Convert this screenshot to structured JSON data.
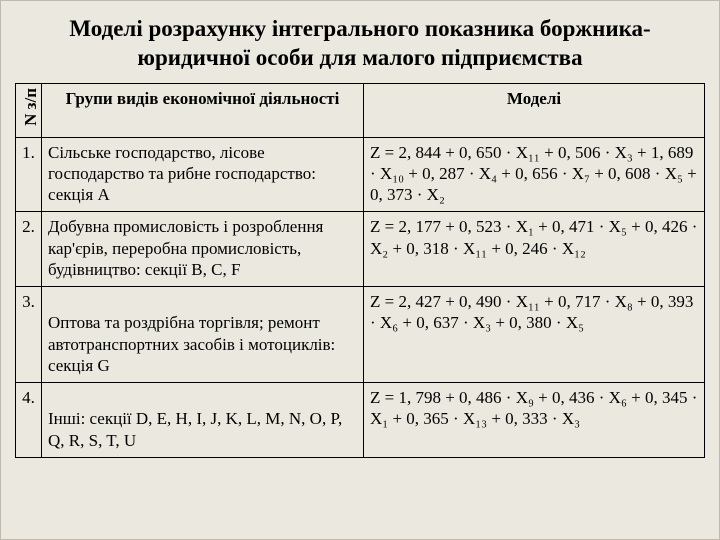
{
  "title_line1": "Моделі розрахунку інтегрального показника боржника-",
  "title_line2": "юридичної особи для малого підприємства",
  "headers": {
    "num": "N з/п",
    "group": "Групи видів економічної діяльності",
    "model": "Моделі"
  },
  "rows": [
    {
      "n": "1.",
      "group": "Сільське господарство, лісове господарство та рибне господарство: секція A",
      "model": "Z = 2, 844 + 0, 650 · X₁₁ + 0, 506 · X₃ + 1, 689 · X₁₀ + 0, 287 · X₄ + 0, 656 · X₇ + 0, 608 · X₅ + 0, 373 · X₂"
    },
    {
      "n": "2.",
      "group": "Добувна промисловість і розроблення кар'єрів, переробна промисловість, будівництво: секції B, C, F",
      "model": "Z = 2, 177 + 0, 523 · X₁ + 0, 471 · X₅ + 0, 426 · X₂ + 0, 318 · X₁₁ + 0, 246 · X₁₂"
    },
    {
      "n": "3.",
      "group": " \nОптова та роздрібна торгівля; ремонт автотранспортних засобів і мотоциклів: секція G",
      "model": "Z = 2, 427 + 0, 490 · X₁₁ + 0, 717 · X₈ + 0, 393 · X₆ + 0, 637 · X₃ + 0, 380 · X₅"
    },
    {
      "n": "4.",
      "group": " \nІнші: секції D, E, H, I, J, K, L, M, N, O, P, Q, R, S, T, U",
      "model": "Z = 1, 798 + 0, 486 · X₉ + 0, 436 · X₆ + 0, 345 · X₁ + 0, 365 · X₁₃ + 0, 333 · X₃"
    }
  ]
}
